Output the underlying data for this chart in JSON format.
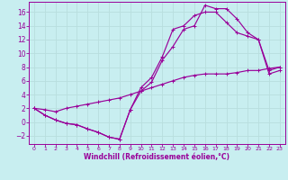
{
  "xlabel": "Windchill (Refroidissement éolien,°C)",
  "bg_color": "#c8eef0",
  "line_color": "#990099",
  "grid_color": "#aadddd",
  "xlim": [
    -0.5,
    23.5
  ],
  "ylim": [
    -3.2,
    17.5
  ],
  "xticks": [
    0,
    1,
    2,
    3,
    4,
    5,
    6,
    7,
    8,
    9,
    10,
    11,
    12,
    13,
    14,
    15,
    16,
    17,
    18,
    19,
    20,
    21,
    22,
    23
  ],
  "yticks": [
    -2,
    0,
    2,
    4,
    6,
    8,
    10,
    12,
    14,
    16
  ],
  "line1_x": [
    0,
    1,
    2,
    3,
    4,
    5,
    6,
    7,
    8,
    9,
    10,
    11,
    12,
    13,
    14,
    15,
    16,
    17,
    18,
    19,
    20,
    21,
    22,
    23
  ],
  "line1_y": [
    2.0,
    1.0,
    0.3,
    -0.2,
    -0.4,
    -1.0,
    -1.5,
    -2.2,
    -2.5,
    1.8,
    4.5,
    5.8,
    9.0,
    11.0,
    13.5,
    14.0,
    17.0,
    16.5,
    16.5,
    15.0,
    13.0,
    12.0,
    7.5,
    8.0
  ],
  "line2_x": [
    0,
    1,
    2,
    3,
    4,
    5,
    6,
    7,
    8,
    9,
    10,
    11,
    12,
    13,
    14,
    15,
    16,
    17,
    18,
    19,
    20,
    21,
    22,
    23
  ],
  "line2_y": [
    2.0,
    1.0,
    0.3,
    -0.2,
    -0.4,
    -1.0,
    -1.5,
    -2.2,
    -2.5,
    1.8,
    5.0,
    6.5,
    9.5,
    13.5,
    14.0,
    15.5,
    16.0,
    16.0,
    14.5,
    13.0,
    12.5,
    12.0,
    7.0,
    7.5
  ],
  "line3_x": [
    0,
    1,
    2,
    3,
    4,
    5,
    6,
    7,
    8,
    9,
    10,
    11,
    12,
    13,
    14,
    15,
    16,
    17,
    18,
    19,
    20,
    21,
    22,
    23
  ],
  "line3_y": [
    2.0,
    1.8,
    1.5,
    2.0,
    2.3,
    2.6,
    2.9,
    3.2,
    3.5,
    4.0,
    4.5,
    5.0,
    5.5,
    6.0,
    6.5,
    6.8,
    7.0,
    7.0,
    7.0,
    7.2,
    7.5,
    7.5,
    7.8,
    8.0
  ],
  "xlabel_fontsize": 5.5,
  "tick_fontsize_x": 4.5,
  "tick_fontsize_y": 5.5,
  "linewidth": 0.85,
  "markersize": 2.5
}
